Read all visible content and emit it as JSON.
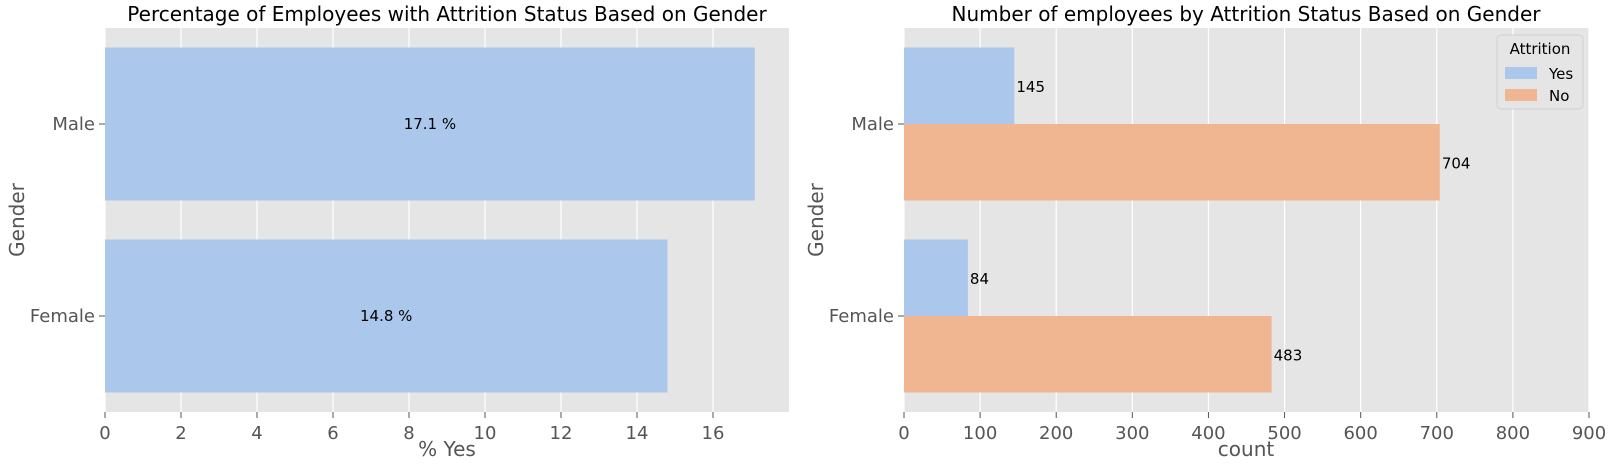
{
  "chart_data": [
    {
      "type": "bar",
      "orientation": "horizontal",
      "title": "Percentage of Employees with Attrition Status Based on Gender",
      "xlabel": "% Yes",
      "ylabel": "Gender",
      "categories": [
        "Male",
        "Female"
      ],
      "values": [
        17.1,
        14.8
      ],
      "data_labels": [
        "17.1 %",
        "14.8 %"
      ],
      "xlim": [
        0,
        18
      ],
      "xticks": [
        "0",
        "2",
        "4",
        "6",
        "8",
        "10",
        "12",
        "14",
        "16"
      ],
      "grid": true,
      "colors": [
        "#abc8ec"
      ]
    },
    {
      "type": "bar",
      "orientation": "horizontal",
      "title": "Number of employees by Attrition Status Based on Gender",
      "xlabel": "count",
      "ylabel": "Gender",
      "categories": [
        "Male",
        "Female"
      ],
      "series": [
        {
          "name": "Yes",
          "values": [
            145,
            84
          ]
        },
        {
          "name": "No",
          "values": [
            704,
            483
          ]
        }
      ],
      "data_labels": [
        [
          "145",
          "84"
        ],
        [
          "704",
          "483"
        ]
      ],
      "xlim": [
        0,
        900
      ],
      "xticks": [
        "0",
        "100",
        "200",
        "300",
        "400",
        "500",
        "600",
        "700",
        "800",
        "900"
      ],
      "legend": {
        "title": "Attrition",
        "placement": "top-right"
      },
      "grid": true,
      "colors": [
        "#abc8ec",
        "#f0b692"
      ]
    }
  ],
  "style": {
    "panel_bg": "#e5e5e5",
    "grid_color": "#ffffff",
    "tick_color": "#555555"
  }
}
